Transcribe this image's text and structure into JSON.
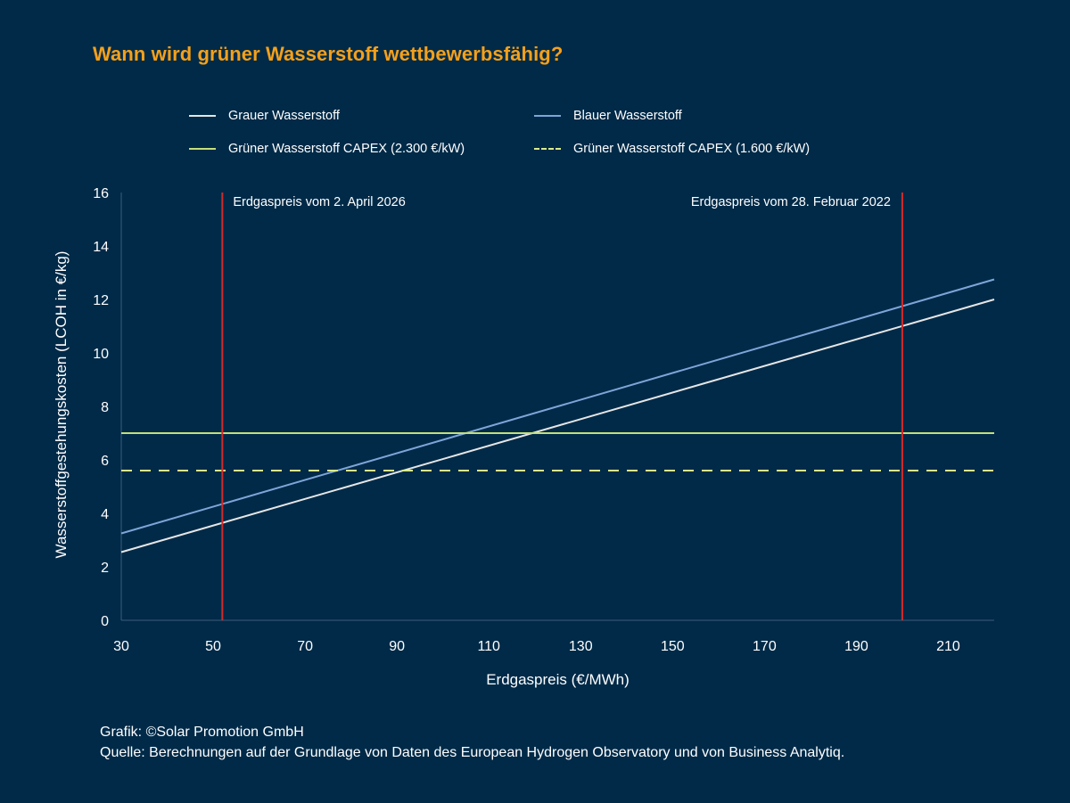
{
  "chart_data": {
    "type": "line",
    "title": "Wann wird grüner Wasserstoff wettbewerbsfähig?",
    "xlabel": "Erdgaspreis (€/MWh)",
    "ylabel": "Wasserstoffgestehungskosten (LCOH in €/kg)",
    "xlim": [
      30,
      220
    ],
    "ylim": [
      0,
      16
    ],
    "x_ticks": [
      30,
      50,
      70,
      90,
      110,
      130,
      150,
      170,
      190,
      210
    ],
    "y_ticks": [
      0,
      2,
      4,
      6,
      8,
      10,
      12,
      14,
      16
    ],
    "grid": false,
    "legend_placement": "top",
    "series": [
      {
        "name": "Grauer Wasserstoff",
        "color": "#e6e6e6",
        "dash": "solid",
        "x": [
          30,
          220
        ],
        "y": [
          2.55,
          12.0
        ]
      },
      {
        "name": "Blauer Wasserstoff",
        "color": "#7ea5d8",
        "dash": "solid",
        "x": [
          30,
          220
        ],
        "y": [
          3.25,
          12.75
        ]
      },
      {
        "name": "Grüner Wasserstoff CAPEX (2.300 €/kW)",
        "color": "#c5df7a",
        "dash": "solid",
        "x": [
          30,
          220
        ],
        "y": [
          7.0,
          7.0
        ]
      },
      {
        "name": "Grüner Wasserstoff CAPEX (1.600 €/kW)",
        "color": "#d8ec8a",
        "dash": "dashed",
        "x": [
          30,
          220
        ],
        "y": [
          5.6,
          5.6
        ]
      }
    ],
    "annotations": [
      {
        "x": 52,
        "text": "Erdgaspreis vom 2. April 2026",
        "color": "#d42a2a",
        "text_side": "right"
      },
      {
        "x": 200,
        "text": "Erdgaspreis vom 28. Februar 2022",
        "color": "#d42a2a",
        "text_side": "left"
      }
    ]
  },
  "footer": {
    "credit": "Grafik: ©Solar Promotion GmbH",
    "source": "Quelle: Berechnungen auf der Grundlage von Daten des European Hydrogen Observatory und von Business Analytiq."
  }
}
